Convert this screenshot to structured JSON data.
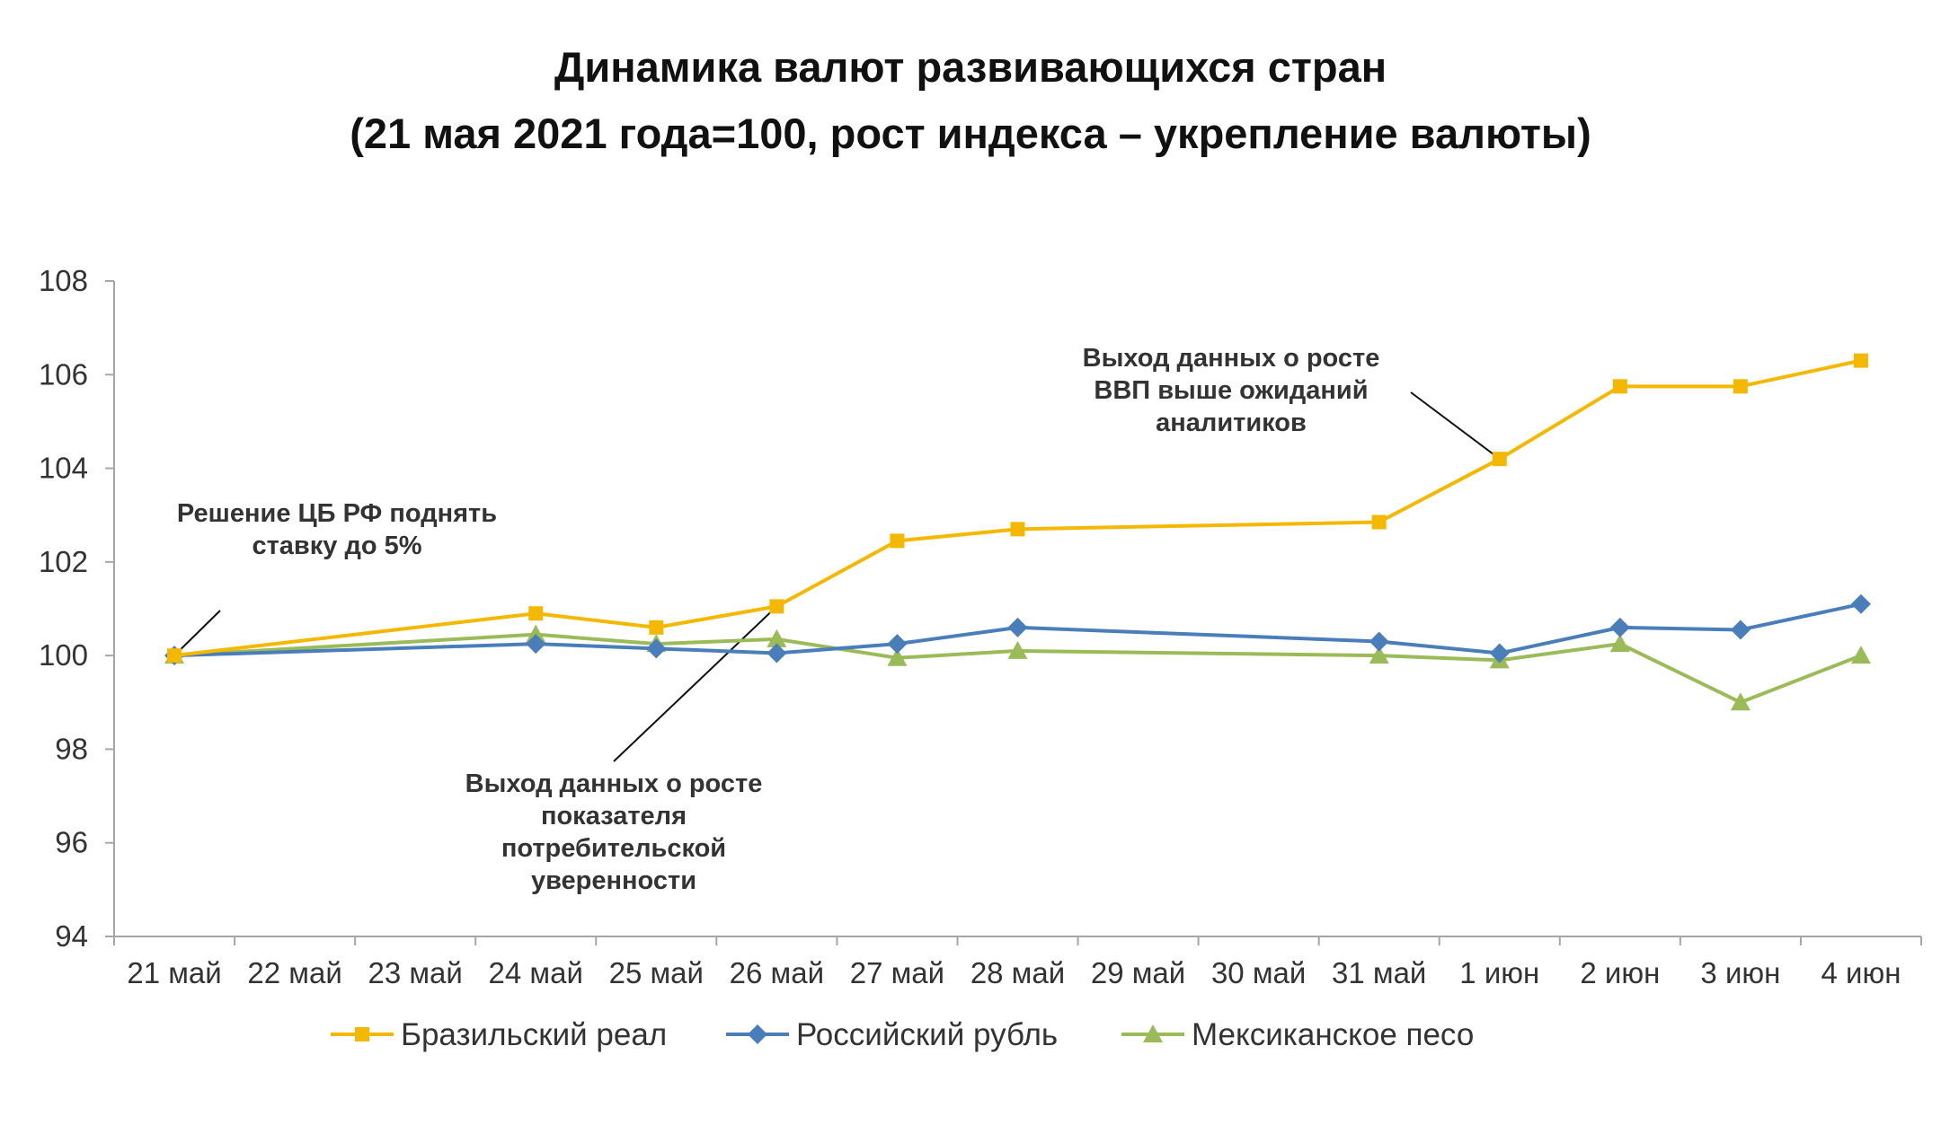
{
  "chart_data": {
    "type": "line",
    "title": "Динамика валют развивающихся стран",
    "subtitle": "(21 мая 2021 года=100, рост индекса – укрепление валюты)",
    "categories": [
      "21 май",
      "22 май",
      "23 май",
      "24 май",
      "25 май",
      "26 май",
      "27 май",
      "28 май",
      "29 май",
      "30 май",
      "31 май",
      "1 июн",
      "2 июн",
      "3 июн",
      "4 июн"
    ],
    "ylim": [
      94,
      108
    ],
    "yticks": [
      "94",
      "96",
      "98",
      "100",
      "102",
      "104",
      "106",
      "108"
    ],
    "grid": false,
    "legend_position": "bottom",
    "series": [
      {
        "name": "Бразильский реал",
        "color": "#F5B800",
        "marker": "square",
        "values": [
          100,
          null,
          null,
          100.9,
          100.6,
          101.05,
          102.45,
          102.7,
          null,
          null,
          102.85,
          104.2,
          105.75,
          105.75,
          106.3
        ]
      },
      {
        "name": "Российский рубль",
        "color": "#4A7EBB",
        "marker": "diamond",
        "values": [
          100,
          null,
          null,
          100.25,
          100.15,
          100.05,
          100.25,
          100.6,
          null,
          null,
          100.3,
          100.05,
          100.6,
          100.55,
          101.1
        ]
      },
      {
        "name": "Мексиканское песо",
        "color": "#9BBB59",
        "marker": "triangle",
        "values": [
          100,
          null,
          null,
          100.45,
          100.25,
          100.35,
          99.95,
          100.1,
          null,
          null,
          100.0,
          99.9,
          100.25,
          99.0,
          100.0
        ]
      }
    ],
    "annotations": [
      {
        "lines": [
          "Решение ЦБ РФ поднять",
          "ставку до 5%"
        ],
        "category": "21 май",
        "y": 100
      },
      {
        "lines": [
          "Выход данных о росте",
          "показателя",
          "потребительской",
          "уверенности"
        ],
        "category": "26 май",
        "y": 101.05
      },
      {
        "lines": [
          "Выход данных о росте",
          "ВВП выше ожиданий",
          "аналитиков"
        ],
        "category": "1 июн",
        "y": 104.2
      }
    ]
  }
}
